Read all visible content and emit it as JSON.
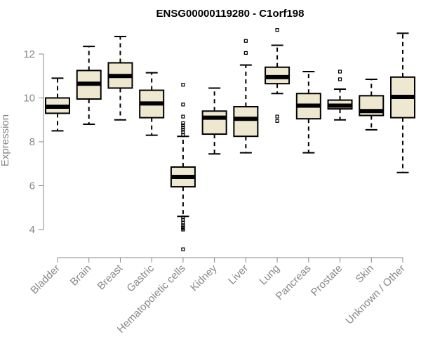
{
  "chart_data": {
    "type": "box",
    "title": "ENSG00000119280 - C1orf198",
    "xlabel": "",
    "ylabel": "Expression",
    "ylim": [
      3.0,
      13.2
    ],
    "yticks": [
      4,
      6,
      8,
      10,
      12
    ],
    "grid": false,
    "colors": {
      "box_fill": "#efe8d0",
      "stroke": "#000000",
      "axis": "#888888"
    },
    "categories": [
      "Bladder",
      "Brain",
      "Breast",
      "Gastric",
      "Hematopoietic cells",
      "Kidney",
      "Liver",
      "Lung",
      "Pancreas",
      "Prostate",
      "Skin",
      "Unknown / Other"
    ],
    "boxes": [
      {
        "q1": 9.3,
        "median": 9.6,
        "q3": 10.0,
        "whisker_low": 8.5,
        "whisker_high": 10.9,
        "outliers": []
      },
      {
        "q1": 9.95,
        "median": 10.65,
        "q3": 11.25,
        "whisker_low": 8.8,
        "whisker_high": 12.35,
        "outliers": []
      },
      {
        "q1": 10.45,
        "median": 11.0,
        "q3": 11.6,
        "whisker_low": 9.0,
        "whisker_high": 12.8,
        "outliers": []
      },
      {
        "q1": 9.1,
        "median": 9.75,
        "q3": 10.35,
        "whisker_low": 8.3,
        "whisker_high": 11.15,
        "outliers": []
      },
      {
        "q1": 5.95,
        "median": 6.4,
        "q3": 6.85,
        "whisker_low": 4.6,
        "whisker_high": 8.25,
        "outliers": [
          3.1,
          4.0,
          4.05,
          4.1,
          4.2,
          4.3,
          4.45,
          4.55,
          8.3,
          8.45,
          8.55,
          8.65,
          8.75,
          8.85,
          9.15,
          9.7,
          10.6
        ]
      },
      {
        "q1": 8.35,
        "median": 9.1,
        "q3": 9.4,
        "whisker_low": 7.45,
        "whisker_high": 10.45,
        "outliers": []
      },
      {
        "q1": 8.25,
        "median": 9.05,
        "q3": 9.6,
        "whisker_low": 7.5,
        "whisker_high": 11.5,
        "outliers": [
          12.05,
          12.6
        ]
      },
      {
        "q1": 10.65,
        "median": 10.95,
        "q3": 11.4,
        "whisker_low": 10.2,
        "whisker_high": 12.4,
        "outliers": [
          8.95,
          9.15,
          13.1
        ]
      },
      {
        "q1": 9.05,
        "median": 9.65,
        "q3": 10.2,
        "whisker_low": 7.5,
        "whisker_high": 11.2,
        "outliers": []
      },
      {
        "q1": 9.5,
        "median": 9.65,
        "q3": 9.9,
        "whisker_low": 9.0,
        "whisker_high": 10.4,
        "outliers": [
          10.85,
          11.2
        ]
      },
      {
        "q1": 9.2,
        "median": 9.4,
        "q3": 10.1,
        "whisker_low": 8.55,
        "whisker_high": 10.85,
        "outliers": []
      },
      {
        "q1": 9.1,
        "median": 10.05,
        "q3": 10.95,
        "whisker_low": 6.6,
        "whisker_high": 12.95,
        "outliers": []
      }
    ]
  }
}
